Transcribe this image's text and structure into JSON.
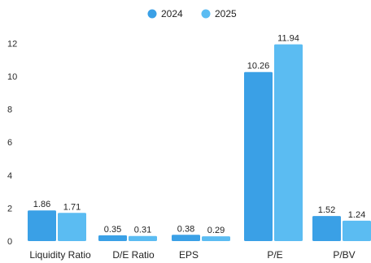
{
  "chart_data": {
    "type": "bar",
    "categories": [
      "Liquidity Ratio",
      "D/E Ratio",
      "EPS",
      "P/E",
      "P/BV"
    ],
    "series": [
      {
        "name": "2024",
        "values": [
          1.86,
          0.35,
          0.38,
          10.26,
          1.52
        ],
        "labels": [
          "1.86",
          "0.35",
          "0.38",
          "10.26",
          "1.52"
        ],
        "color": "#3aa0e6"
      },
      {
        "name": "2025",
        "values": [
          1.71,
          0.31,
          0.29,
          11.94,
          1.24
        ],
        "labels": [
          "1.71",
          "0.31",
          "0.29",
          "11.94",
          "1.24"
        ],
        "color": "#5bbcf2"
      }
    ],
    "yticks": [
      "0",
      "2",
      "4",
      "6",
      "8",
      "10",
      "12"
    ],
    "ylim": [
      0,
      12.5
    ],
    "grid": false,
    "legend_position": "top-center"
  }
}
